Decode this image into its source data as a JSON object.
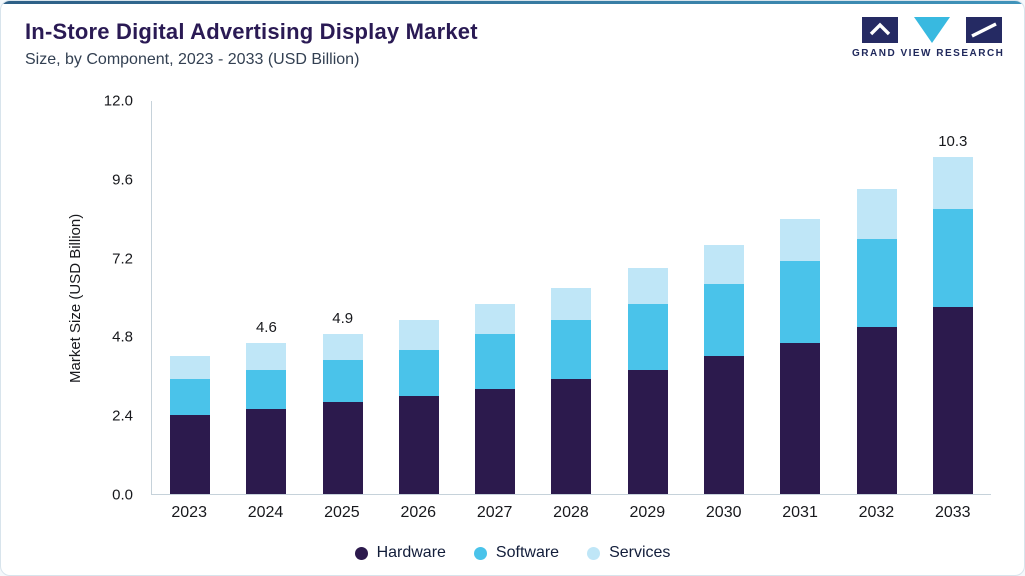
{
  "header": {
    "title": "In-Store Digital Advertising Display Market",
    "subtitle": "Size, by Component, 2023 - 2033 (USD Billion)",
    "brand": "GRAND VIEW RESEARCH"
  },
  "logo": {
    "shapes": [
      "angular-g-mark",
      "cyan-triangle-mark",
      "slash-mark"
    ],
    "dark_color": "#252a63",
    "cyan_color": "#38b9e0"
  },
  "chart_data": {
    "type": "bar",
    "stacked": true,
    "title": "In-Store Digital Advertising Display Market Size, by Component, 2023 - 2033 (USD Billion)",
    "categories": [
      "2023",
      "2024",
      "2025",
      "2026",
      "2027",
      "2028",
      "2029",
      "2030",
      "2031",
      "2032",
      "2033"
    ],
    "series": [
      {
        "name": "Hardware",
        "color": "#2c1a4d",
        "values": [
          2.4,
          2.6,
          2.8,
          3.0,
          3.2,
          3.5,
          3.8,
          4.2,
          4.6,
          5.1,
          5.7
        ]
      },
      {
        "name": "Software",
        "color": "#4ac3ea",
        "values": [
          1.1,
          1.2,
          1.3,
          1.4,
          1.7,
          1.8,
          2.0,
          2.2,
          2.5,
          2.7,
          3.0
        ]
      },
      {
        "name": "Services",
        "color": "#bfe6f7",
        "values": [
          0.7,
          0.8,
          0.8,
          0.9,
          0.9,
          1.0,
          1.1,
          1.2,
          1.3,
          1.5,
          1.6
        ]
      }
    ],
    "totals": [
      4.2,
      4.6,
      4.9,
      5.3,
      5.8,
      6.3,
      6.9,
      7.6,
      8.4,
      9.3,
      10.3
    ],
    "bar_labels": [
      "",
      "4.6",
      "4.9",
      "",
      "",
      "",
      "",
      "",
      "",
      "",
      "10.3"
    ],
    "ylabel": "Market Size (USD Billion)",
    "yticks": [
      "12.0",
      "9.6",
      "7.2",
      "4.8",
      "2.4",
      "0.0"
    ],
    "ylim": [
      0,
      12
    ],
    "xlabel": "",
    "grid": false,
    "legend_position": "bottom",
    "accent_color": "#3f93ba"
  }
}
